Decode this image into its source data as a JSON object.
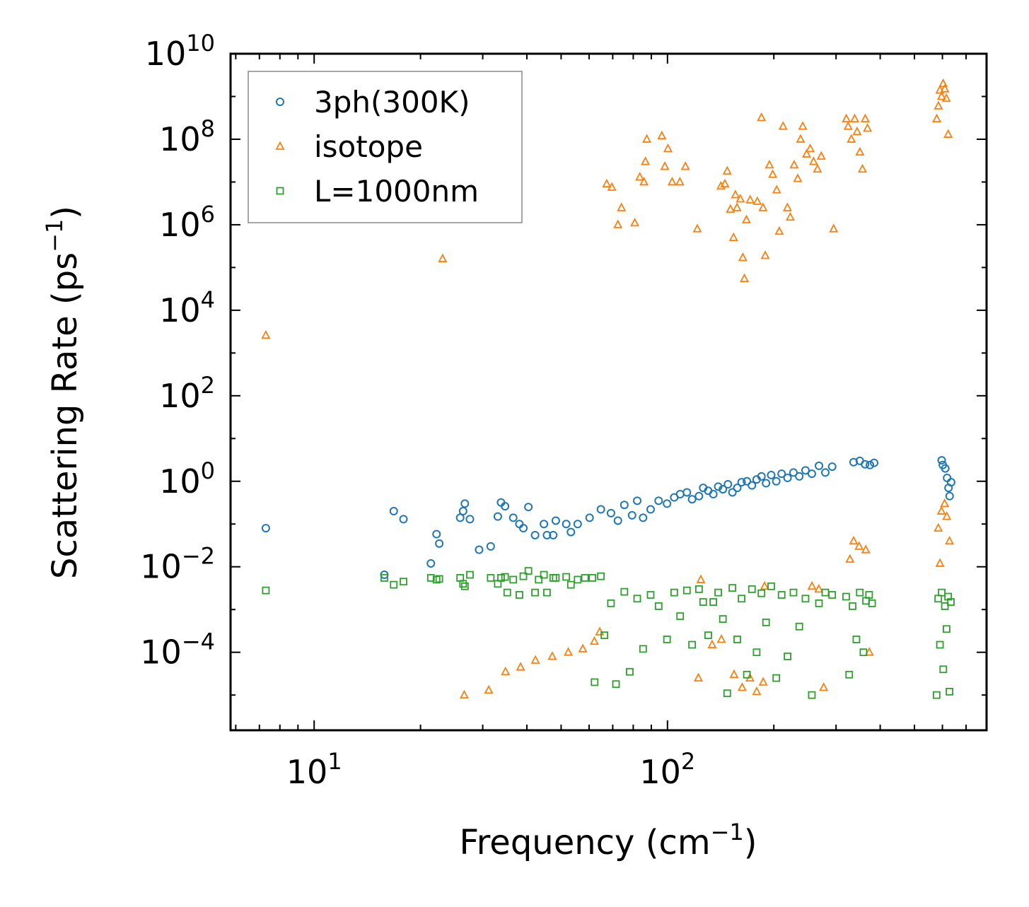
{
  "chart_data": {
    "type": "scatter",
    "xscale": "log",
    "yscale": "log",
    "xlim": [
      5.8,
      800
    ],
    "ylim": [
      1.5e-06,
      10000000000.0
    ],
    "xlabel": "Frequency (cm",
    "xlabel_sup": "−1",
    "xlabel_end": ")",
    "ylabel": "Scattering Rate (ps",
    "ylabel_sup": "−1",
    "ylabel_end": ")",
    "x_ticks": [
      {
        "value": 10,
        "base": "10",
        "exp": "1"
      },
      {
        "value": 100,
        "base": "10",
        "exp": "2"
      }
    ],
    "y_ticks": [
      {
        "value": 0.0001,
        "base": "10",
        "exp": "−4"
      },
      {
        "value": 0.01,
        "base": "10",
        "exp": "−2"
      },
      {
        "value": 1,
        "base": "10",
        "exp": "0"
      },
      {
        "value": 100.0,
        "base": "10",
        "exp": "2"
      },
      {
        "value": 10000.0,
        "base": "10",
        "exp": "4"
      },
      {
        "value": 1000000.0,
        "base": "10",
        "exp": "6"
      },
      {
        "value": 100000000.0,
        "base": "10",
        "exp": "8"
      },
      {
        "value": 10000000000.0,
        "base": "10",
        "exp": "10"
      }
    ],
    "legend_position": "top-left",
    "series": [
      {
        "name": "3ph(300K)",
        "marker": "circle",
        "color": "#1f77b4",
        "points": [
          [
            7.3,
            0.08
          ],
          [
            15.8,
            0.0065
          ],
          [
            16.8,
            0.2
          ],
          [
            17.9,
            0.13
          ],
          [
            21.4,
            0.012
          ],
          [
            22.2,
            0.058
          ],
          [
            22.6,
            0.035
          ],
          [
            25.9,
            0.14
          ],
          [
            26.4,
            0.2
          ],
          [
            26.7,
            0.3
          ],
          [
            27.6,
            0.13
          ],
          [
            29.3,
            0.025
          ],
          [
            31.6,
            0.03
          ],
          [
            33.1,
            0.15
          ],
          [
            33.8,
            0.32
          ],
          [
            34.7,
            0.26
          ],
          [
            36.6,
            0.14
          ],
          [
            38.1,
            0.1
          ],
          [
            39.1,
            0.08
          ],
          [
            40.4,
            0.25
          ],
          [
            42.2,
            0.055
          ],
          [
            44.7,
            0.1
          ],
          [
            45.6,
            0.055
          ],
          [
            47.5,
            0.055
          ],
          [
            48.3,
            0.12
          ],
          [
            51.7,
            0.1
          ],
          [
            53.3,
            0.065
          ],
          [
            55.7,
            0.1
          ],
          [
            60.2,
            0.14
          ],
          [
            64.8,
            0.22
          ],
          [
            69.2,
            0.18
          ],
          [
            72.4,
            0.12
          ],
          [
            75.5,
            0.28
          ],
          [
            79.4,
            0.16
          ],
          [
            82.1,
            0.35
          ],
          [
            85.3,
            0.14
          ],
          [
            89.6,
            0.22
          ],
          [
            94.4,
            0.35
          ],
          [
            99.7,
            0.3
          ],
          [
            104.5,
            0.42
          ],
          [
            108.6,
            0.5
          ],
          [
            113.5,
            0.55
          ],
          [
            117.4,
            0.38
          ],
          [
            122.8,
            0.45
          ],
          [
            126.2,
            0.7
          ],
          [
            130.4,
            0.6
          ],
          [
            134.8,
            0.5
          ],
          [
            139.2,
            0.75
          ],
          [
            143.5,
            0.65
          ],
          [
            148.3,
            0.85
          ],
          [
            152.7,
            0.55
          ],
          [
            157.6,
            0.7
          ],
          [
            162.1,
            0.95
          ],
          [
            167.8,
            1.0
          ],
          [
            173.4,
            0.8
          ],
          [
            178.8,
            1.1
          ],
          [
            184.5,
            1.3
          ],
          [
            190.1,
            0.9
          ],
          [
            196.6,
            1.4
          ],
          [
            203.2,
            1.0
          ],
          [
            210.4,
            1.5
          ],
          [
            218.7,
            1.2
          ],
          [
            227.3,
            1.6
          ],
          [
            236.1,
            1.3
          ],
          [
            245.8,
            1.8
          ],
          [
            256.2,
            1.5
          ],
          [
            268.4,
            2.3
          ],
          [
            279.7,
            1.6
          ],
          [
            292.5,
            2.2
          ],
          [
            336.3,
            2.8
          ],
          [
            350.2,
            3.0
          ],
          [
            362.4,
            2.5
          ],
          [
            374.1,
            2.4
          ],
          [
            384.5,
            2.7
          ],
          [
            597.3,
            3.1
          ],
          [
            601.5,
            2.4
          ],
          [
            611.4,
            2.0
          ],
          [
            618.6,
            1.2
          ],
          [
            624.3,
            0.7
          ],
          [
            628.8,
            0.45
          ],
          [
            635.1,
            0.95
          ]
        ]
      },
      {
        "name": "isotope",
        "marker": "triangle",
        "color": "#ff7f0e",
        "points": [
          [
            7.3,
            2600
          ],
          [
            23.1,
            160000
          ],
          [
            26.6,
            1e-05
          ],
          [
            31.2,
            1.3e-05
          ],
          [
            34.8,
            3.5e-05
          ],
          [
            38.4,
            4.5e-05
          ],
          [
            42.3,
            6.5e-05
          ],
          [
            47.2,
            8e-05
          ],
          [
            52.4,
            0.0001
          ],
          [
            57.6,
            0.00012
          ],
          [
            62.1,
            0.00018
          ],
          [
            64.3,
            0.0003
          ],
          [
            67.3,
            9000000.0
          ],
          [
            69.6,
            7500000.0
          ],
          [
            72.4,
            1000000.0
          ],
          [
            74.1,
            2500000.0
          ],
          [
            80.8,
            1100000.0
          ],
          [
            83.5,
            13000000.0
          ],
          [
            85.8,
            10000000.0
          ],
          [
            86.6,
            30000000.0
          ],
          [
            87.4,
            100000000.0
          ],
          [
            96.4,
            120000000.0
          ],
          [
            98.3,
            23000000.0
          ],
          [
            100.3,
            60000000.0
          ],
          [
            103.1,
            10000000.0
          ],
          [
            108.4,
            10000000.0
          ],
          [
            112.4,
            23000000.0
          ],
          [
            121.5,
            800000.0
          ],
          [
            124.3,
            0.005
          ],
          [
            122.3,
            2.5e-05
          ],
          [
            141.7,
            8000000.0
          ],
          [
            145.4,
            9000000.0
          ],
          [
            147.6,
            18000000.0
          ],
          [
            150.7,
            2300000.0
          ],
          [
            153.8,
            500000.0
          ],
          [
            155.7,
            5000000.0
          ],
          [
            157.3,
            2500000.0
          ],
          [
            160.8,
            4000000.0
          ],
          [
            163.4,
            170000.0
          ],
          [
            165.1,
            55000.0
          ],
          [
            167.3,
            1300000.0
          ],
          [
            171.4,
            3800000.0
          ],
          [
            179.6,
            3500000.0
          ],
          [
            184.5,
            320000000.0
          ],
          [
            186.4,
            2500000.0
          ],
          [
            189.1,
            190000.0
          ],
          [
            194.3,
            25000000.0
          ],
          [
            198.6,
            15000000.0
          ],
          [
            203.8,
            6500000.0
          ],
          [
            207.2,
            700000.0
          ],
          [
            212.4,
            200000000.0
          ],
          [
            218.5,
            2500000.0
          ],
          [
            222.6,
            1500000.0
          ],
          [
            228.3,
            25000000.0
          ],
          [
            233.7,
            12000000.0
          ],
          [
            238.1,
            100000000.0
          ],
          [
            241.5,
            200000000.0
          ],
          [
            247.6,
            45000000.0
          ],
          [
            253.4,
            60000000.0
          ],
          [
            259.1,
            30000000.0
          ],
          [
            265.8,
            20000000.0
          ],
          [
            272.4,
            40000000.0
          ],
          [
            295.3,
            800000.0
          ],
          [
            320.8,
            300000000.0
          ],
          [
            324.6,
            200000000.0
          ],
          [
            331.5,
            100000000.0
          ],
          [
            338.7,
            300000000.0
          ],
          [
            344.1,
            150000000.0
          ],
          [
            350.4,
            50000000.0
          ],
          [
            356.3,
            20000000.0
          ],
          [
            362.8,
            300000000.0
          ],
          [
            368.2,
            180000000.0
          ],
          [
            336.4,
            0.04
          ],
          [
            348.5,
            0.03
          ],
          [
            364.2,
            0.025
          ],
          [
            372.6,
            0.0001
          ],
          [
            328.4,
            0.015
          ],
          [
            578.2,
            300000000.0
          ],
          [
            584.6,
            600000000.0
          ],
          [
            590.3,
            1400000000.0
          ],
          [
            596.7,
            1000000000.0
          ],
          [
            603.1,
            2000000000.0
          ],
          [
            609.4,
            1500000000.0
          ],
          [
            615.6,
            900000000.0
          ],
          [
            622.8,
            130000000.0
          ],
          [
            584.1,
            0.08
          ],
          [
            596.3,
            0.2
          ],
          [
            608.8,
            0.3
          ],
          [
            617.2,
            0.15
          ],
          [
            628.4,
            0.04
          ],
          [
            590.5,
            0.012
          ],
          [
            154.3,
            3e-05
          ],
          [
            162.7,
            1.5e-05
          ],
          [
            171.2,
            2.5e-05
          ],
          [
            178.9,
            1.2e-05
          ],
          [
            186.6,
            2e-05
          ],
          [
            133.8,
            0.00015
          ],
          [
            142.1,
            0.0002
          ],
          [
            256.4,
            0.0035
          ],
          [
            268.1,
            0.003
          ],
          [
            276.7,
            1.5e-05
          ],
          [
            188.3,
            0.0035
          ]
        ]
      },
      {
        "name": "L=1000nm",
        "marker": "square",
        "color": "#2ca02c",
        "points": [
          [
            7.3,
            0.0028
          ],
          [
            15.8,
            0.0055
          ],
          [
            16.8,
            0.0038
          ],
          [
            17.9,
            0.0045
          ],
          [
            21.4,
            0.0055
          ],
          [
            22.2,
            0.005
          ],
          [
            22.6,
            0.0052
          ],
          [
            25.9,
            0.0055
          ],
          [
            26.4,
            0.004
          ],
          [
            26.7,
            0.0035
          ],
          [
            27.6,
            0.0065
          ],
          [
            31.6,
            0.0055
          ],
          [
            33.1,
            0.004
          ],
          [
            33.8,
            0.0055
          ],
          [
            34.7,
            0.0058
          ],
          [
            35.2,
            0.0025
          ],
          [
            36.6,
            0.005
          ],
          [
            38.1,
            0.0022
          ],
          [
            39.1,
            0.006
          ],
          [
            40.4,
            0.008
          ],
          [
            42.2,
            0.0025
          ],
          [
            43.2,
            0.005
          ],
          [
            44.7,
            0.0065
          ],
          [
            45.6,
            0.0025
          ],
          [
            47.5,
            0.0055
          ],
          [
            48.3,
            0.0055
          ],
          [
            51.7,
            0.0058
          ],
          [
            53.3,
            0.0038
          ],
          [
            55.7,
            0.005
          ],
          [
            58.4,
            0.0055
          ],
          [
            61.3,
            0.0055
          ],
          [
            62.2,
            2e-05
          ],
          [
            64.8,
            0.006
          ],
          [
            66.3,
            0.00025
          ],
          [
            69.2,
            0.0014
          ],
          [
            71.5,
            1.8e-05
          ],
          [
            75.5,
            0.0026
          ],
          [
            78.2,
            3.5e-05
          ],
          [
            82.1,
            0.0018
          ],
          [
            85.3,
            0.00012
          ],
          [
            89.6,
            0.0022
          ],
          [
            94.4,
            0.0012
          ],
          [
            99.7,
            0.0002
          ],
          [
            104.5,
            0.0025
          ],
          [
            108.6,
            0.0007
          ],
          [
            113.5,
            0.0028
          ],
          [
            117.4,
            0.00015
          ],
          [
            122.8,
            0.003
          ],
          [
            126.2,
            0.0015
          ],
          [
            130.4,
            0.00025
          ],
          [
            134.8,
            0.0015
          ],
          [
            139.2,
            0.0025
          ],
          [
            143.5,
            0.0006
          ],
          [
            147.6,
            1.1e-05
          ],
          [
            152.7,
            0.0032
          ],
          [
            157.6,
            0.0002
          ],
          [
            162.1,
            0.0018
          ],
          [
            167.8,
            3e-05
          ],
          [
            173.4,
            0.003
          ],
          [
            178.8,
            0.0001
          ],
          [
            184.5,
            0.0024
          ],
          [
            190.1,
            0.0005
          ],
          [
            196.6,
            0.0035
          ],
          [
            203.2,
            2.5e-05
          ],
          [
            210.4,
            0.0022
          ],
          [
            218.7,
            8e-05
          ],
          [
            227.3,
            0.0025
          ],
          [
            236.1,
            0.0004
          ],
          [
            245.8,
            0.0018
          ],
          [
            256.2,
            1e-05
          ],
          [
            268.4,
            0.0014
          ],
          [
            279.7,
            0.0025
          ],
          [
            292.5,
            0.0022
          ],
          [
            320.4,
            0.002
          ],
          [
            326.8,
            3e-05
          ],
          [
            334.1,
            0.0012
          ],
          [
            342.5,
            0.0002
          ],
          [
            350.2,
            0.0025
          ],
          [
            358.6,
            0.0001
          ],
          [
            364.7,
            0.0016
          ],
          [
            372.1,
            0.0022
          ],
          [
            379.3,
            0.0014
          ],
          [
            577.6,
            1e-05
          ],
          [
            583.9,
            0.0018
          ],
          [
            590.4,
            0.00015
          ],
          [
            597.2,
            0.0025
          ],
          [
            603.4,
            4e-05
          ],
          [
            609.8,
            0.0012
          ],
          [
            616.4,
            0.00035
          ],
          [
            622.7,
            0.002
          ],
          [
            628.3,
            1.2e-05
          ],
          [
            633.9,
            0.0015
          ]
        ]
      }
    ]
  }
}
